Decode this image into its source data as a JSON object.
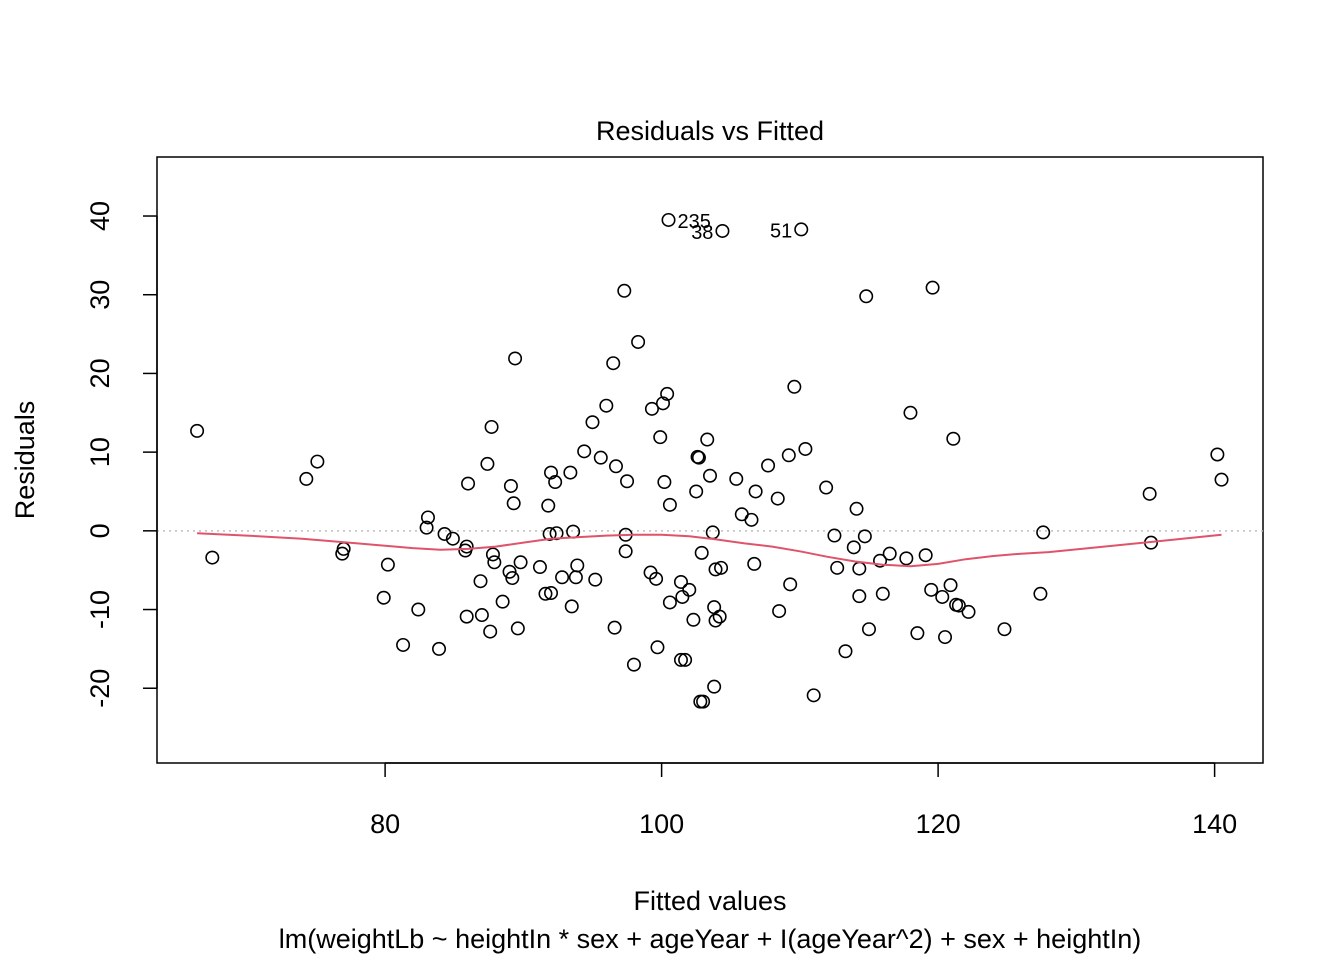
{
  "chart_data": {
    "type": "scatter",
    "title": "Residuals vs Fitted",
    "xlabel": "Fitted values",
    "ylabel": "Residuals",
    "subtitle": "lm(weightLb ~ heightIn * sex + ageYear + I(ageYear^2) + sex + heightIn)",
    "xlim": [
      63.5,
      143.5
    ],
    "ylim": [
      -29.5,
      47.5
    ],
    "x_ticks": [
      80,
      100,
      120,
      140
    ],
    "y_ticks": [
      -20,
      -10,
      0,
      10,
      20,
      30,
      40
    ],
    "grid": false,
    "legend": "none",
    "colors": {
      "points": "#000000",
      "smooth": "#DF536B",
      "reference": "#BEBEBE"
    },
    "reference_line_y": 0,
    "points": [
      [
        66.4,
        12.7
      ],
      [
        67.5,
        -3.4
      ],
      [
        74.3,
        6.6
      ],
      [
        75.1,
        8.8
      ],
      [
        76.9,
        -2.9
      ],
      [
        77.0,
        -2.3
      ],
      [
        79.9,
        -8.5
      ],
      [
        80.2,
        -4.3
      ],
      [
        81.3,
        -14.5
      ],
      [
        82.4,
        -10.0
      ],
      [
        83.0,
        0.4
      ],
      [
        83.1,
        1.7
      ],
      [
        83.9,
        -15.0
      ],
      [
        84.3,
        -0.4
      ],
      [
        84.9,
        -1.0
      ],
      [
        85.8,
        -2.5
      ],
      [
        85.9,
        -2.0
      ],
      [
        85.9,
        -10.9
      ],
      [
        86.0,
        6.0
      ],
      [
        86.9,
        -6.4
      ],
      [
        87.0,
        -10.7
      ],
      [
        87.4,
        8.5
      ],
      [
        87.6,
        -12.8
      ],
      [
        87.7,
        13.2
      ],
      [
        87.8,
        -3.0
      ],
      [
        87.9,
        -4.0
      ],
      [
        88.5,
        -9.0
      ],
      [
        89.0,
        -5.2
      ],
      [
        89.1,
        5.7
      ],
      [
        89.2,
        -6.0
      ],
      [
        89.3,
        3.5
      ],
      [
        89.4,
        21.9
      ],
      [
        89.6,
        -12.4
      ],
      [
        89.8,
        -4.0
      ],
      [
        91.2,
        -4.6
      ],
      [
        91.6,
        -8.0
      ],
      [
        91.8,
        3.2
      ],
      [
        91.9,
        -0.4
      ],
      [
        92.0,
        -7.9
      ],
      [
        92.0,
        7.4
      ],
      [
        92.3,
        6.2
      ],
      [
        92.4,
        -0.3
      ],
      [
        92.8,
        -5.9
      ],
      [
        93.4,
        7.4
      ],
      [
        93.5,
        -9.6
      ],
      [
        93.6,
        -0.1
      ],
      [
        93.8,
        -5.9
      ],
      [
        93.9,
        -4.4
      ],
      [
        94.4,
        10.1
      ],
      [
        95.0,
        13.8
      ],
      [
        95.2,
        -6.2
      ],
      [
        95.6,
        9.3
      ],
      [
        96.0,
        15.9
      ],
      [
        96.5,
        21.3
      ],
      [
        96.6,
        -12.3
      ],
      [
        96.7,
        8.2
      ],
      [
        97.3,
        30.5
      ],
      [
        97.4,
        -0.5
      ],
      [
        97.4,
        -2.6
      ],
      [
        97.5,
        6.3
      ],
      [
        98.0,
        -17.0
      ],
      [
        98.3,
        24.0
      ],
      [
        99.2,
        -5.3
      ],
      [
        99.3,
        15.5
      ],
      [
        99.6,
        -6.1
      ],
      [
        99.7,
        -14.8
      ],
      [
        99.9,
        11.9
      ],
      [
        100.1,
        16.2
      ],
      [
        100.2,
        6.2
      ],
      [
        100.4,
        17.4
      ],
      [
        100.5,
        39.5
      ],
      [
        100.6,
        3.3
      ],
      [
        100.6,
        -9.1
      ],
      [
        101.4,
        -6.5
      ],
      [
        101.4,
        -16.4
      ],
      [
        101.5,
        -8.4
      ],
      [
        101.7,
        -16.4
      ],
      [
        102.0,
        -7.5
      ],
      [
        102.3,
        -11.3
      ],
      [
        102.5,
        5.0
      ],
      [
        102.6,
        9.4
      ],
      [
        102.7,
        9.3
      ],
      [
        102.8,
        -21.7
      ],
      [
        102.9,
        -2.8
      ],
      [
        103.0,
        -21.7
      ],
      [
        103.3,
        11.6
      ],
      [
        103.5,
        7.0
      ],
      [
        103.7,
        -0.2
      ],
      [
        103.8,
        -9.7
      ],
      [
        103.8,
        -19.8
      ],
      [
        103.9,
        -11.4
      ],
      [
        103.9,
        -4.9
      ],
      [
        104.2,
        -10.9
      ],
      [
        104.3,
        -4.7
      ],
      [
        104.4,
        38.1
      ],
      [
        105.4,
        6.6
      ],
      [
        105.8,
        2.1
      ],
      [
        106.5,
        1.4
      ],
      [
        106.7,
        -4.2
      ],
      [
        106.8,
        5.0
      ],
      [
        107.7,
        8.3
      ],
      [
        108.4,
        4.1
      ],
      [
        108.5,
        -10.2
      ],
      [
        109.2,
        9.6
      ],
      [
        109.3,
        -6.8
      ],
      [
        109.6,
        18.3
      ],
      [
        110.1,
        38.3
      ],
      [
        110.4,
        10.4
      ],
      [
        111.0,
        -20.9
      ],
      [
        111.9,
        5.5
      ],
      [
        112.5,
        -0.6
      ],
      [
        112.7,
        -4.7
      ],
      [
        113.3,
        -15.3
      ],
      [
        113.9,
        -2.1
      ],
      [
        114.1,
        2.8
      ],
      [
        114.3,
        -8.3
      ],
      [
        114.3,
        -4.8
      ],
      [
        114.7,
        -0.7
      ],
      [
        114.8,
        29.8
      ],
      [
        115.0,
        -12.5
      ],
      [
        115.8,
        -3.8
      ],
      [
        116.0,
        -8.0
      ],
      [
        116.5,
        -2.9
      ],
      [
        117.7,
        -3.5
      ],
      [
        118.0,
        15.0
      ],
      [
        118.5,
        -13.0
      ],
      [
        119.1,
        -3.1
      ],
      [
        119.5,
        -7.5
      ],
      [
        119.6,
        30.9
      ],
      [
        120.3,
        -8.4
      ],
      [
        120.5,
        -13.5
      ],
      [
        120.9,
        -6.9
      ],
      [
        121.1,
        11.7
      ],
      [
        121.3,
        -9.4
      ],
      [
        121.5,
        -9.5
      ],
      [
        122.2,
        -10.3
      ],
      [
        124.8,
        -12.5
      ],
      [
        127.4,
        -8.0
      ],
      [
        127.6,
        -0.2
      ],
      [
        135.3,
        4.7
      ],
      [
        135.4,
        -1.5
      ],
      [
        140.2,
        9.7
      ],
      [
        140.5,
        6.5
      ]
    ],
    "smooth_line": [
      [
        66.4,
        -0.3
      ],
      [
        70,
        -0.6
      ],
      [
        74,
        -1.0
      ],
      [
        78,
        -1.6
      ],
      [
        82,
        -2.2
      ],
      [
        84,
        -2.4
      ],
      [
        86,
        -2.3
      ],
      [
        88,
        -2.0
      ],
      [
        90,
        -1.5
      ],
      [
        92,
        -1.0
      ],
      [
        94,
        -0.8
      ],
      [
        96,
        -0.6
      ],
      [
        98,
        -0.5
      ],
      [
        100,
        -0.5
      ],
      [
        102,
        -0.7
      ],
      [
        104,
        -1.1
      ],
      [
        106,
        -1.6
      ],
      [
        108,
        -2.0
      ],
      [
        110,
        -2.6
      ],
      [
        112,
        -3.3
      ],
      [
        114,
        -3.9
      ],
      [
        116,
        -4.3
      ],
      [
        118,
        -4.5
      ],
      [
        120,
        -4.2
      ],
      [
        122,
        -3.6
      ],
      [
        124,
        -3.2
      ],
      [
        126,
        -2.9
      ],
      [
        128,
        -2.7
      ],
      [
        132,
        -2.0
      ],
      [
        136,
        -1.3
      ],
      [
        140.5,
        -0.5
      ]
    ],
    "point_labels": [
      {
        "text": "235",
        "x": 100.5,
        "y": 39.5,
        "side": "right"
      },
      {
        "text": "38",
        "x": 104.4,
        "y": 38.1,
        "side": "left"
      },
      {
        "text": "51",
        "x": 110.1,
        "y": 38.3,
        "side": "left"
      }
    ]
  }
}
